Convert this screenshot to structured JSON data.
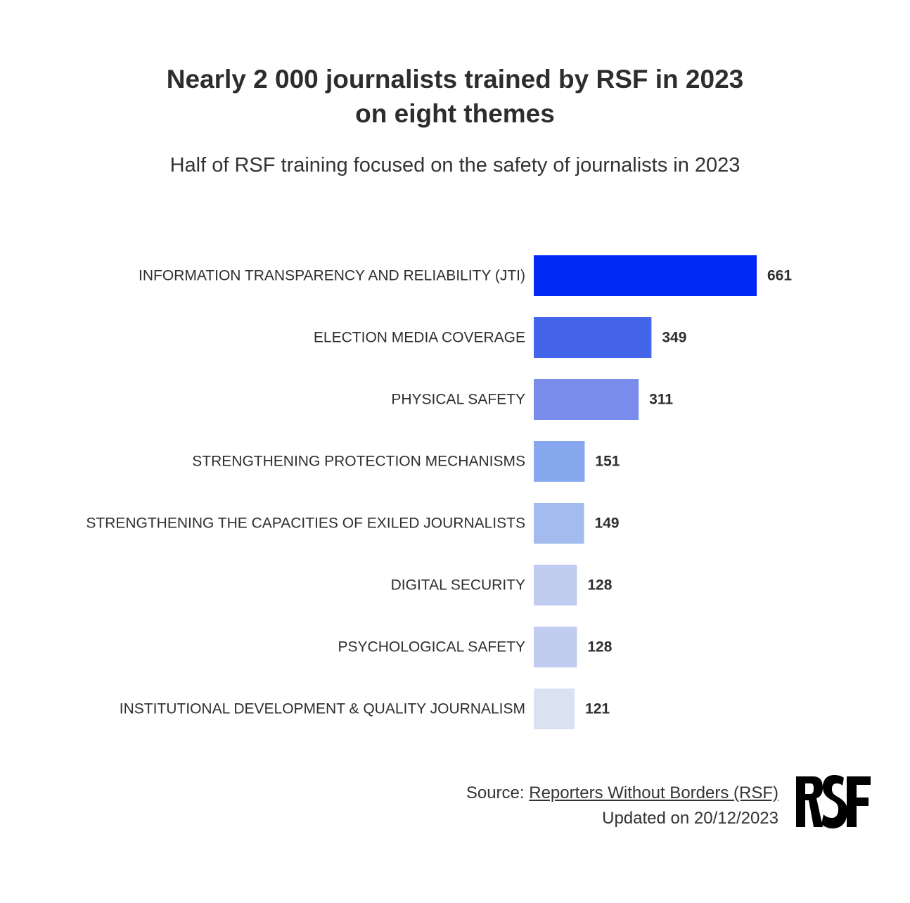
{
  "header": {
    "title_line1": "Nearly 2 000 journalists trained by RSF in 2023",
    "title_line2": "on eight themes",
    "subtitle": "Half of RSF training focused on the safety of journalists in 2023"
  },
  "chart_data": {
    "type": "bar",
    "orientation": "horizontal",
    "categories": [
      "INFORMATION TRANSPARENCY AND RELIABILITY (JTI)",
      "ELECTION MEDIA COVERAGE",
      "PHYSICAL SAFETY",
      "STRENGTHENING PROTECTION MECHANISMS",
      "STRENGTHENING THE CAPACITIES OF EXILED JOURNALISTS",
      "DIGITAL SECURITY",
      "PSYCHOLOGICAL SAFETY",
      "INSTITUTIONAL DEVELOPMENT & QUALITY JOURNALISM"
    ],
    "values": [
      661,
      349,
      311,
      151,
      149,
      128,
      128,
      121
    ],
    "colors": [
      "#0028f5",
      "#4464ea",
      "#7a8ded",
      "#87a8ef",
      "#a4bbef",
      "#c1cdf0",
      "#c1cdf0",
      "#dae2f1"
    ],
    "data_labels": [
      "661",
      "349",
      "311",
      "151",
      "149",
      "128",
      "128",
      "121"
    ],
    "xlim": [
      0,
      661
    ],
    "grid": false,
    "legend": "none"
  },
  "footer": {
    "source_prefix": "Source: ",
    "source_link": "Reporters Without Borders (RSF)",
    "updated": "Updated on 20/12/2023"
  },
  "logo": {
    "text": "RSF",
    "icon": "rsf-logo"
  }
}
